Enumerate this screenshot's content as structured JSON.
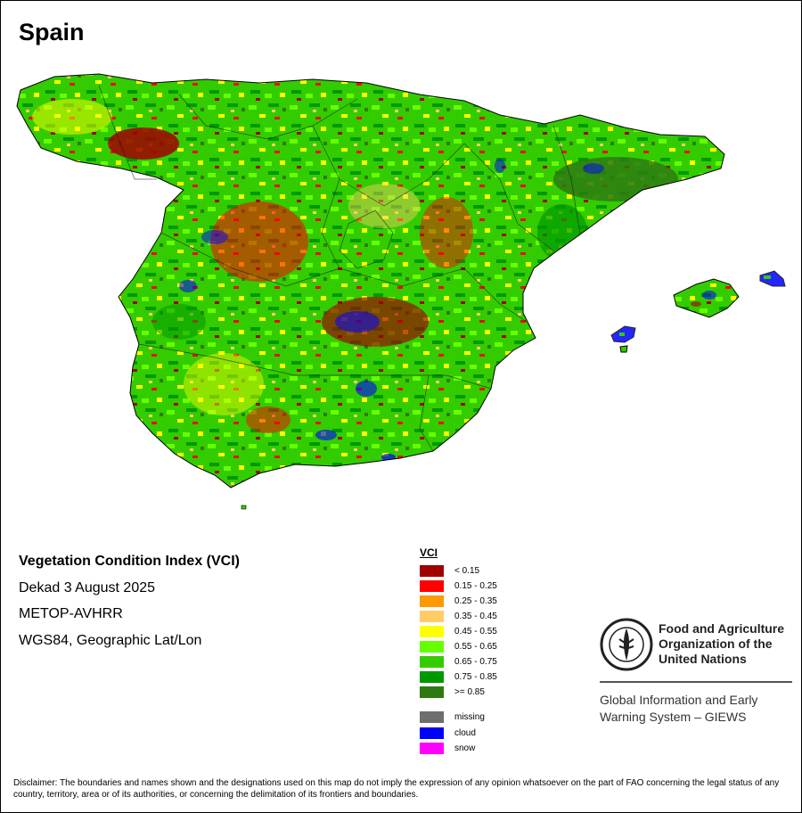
{
  "map": {
    "title": "Spain",
    "info": {
      "product": "Vegetation Condition Index (VCI)",
      "date": "Dekad 3 August 2025",
      "sensor": "METOP-AVHRR",
      "projection": "WGS84, Geographic Lat/Lon"
    },
    "legend": {
      "title": "VCI",
      "classes": [
        {
          "label": "< 0.15",
          "color": "#a00000"
        },
        {
          "label": "0.15 - 0.25",
          "color": "#ff0000"
        },
        {
          "label": "0.25 - 0.35",
          "color": "#ff9900"
        },
        {
          "label": "0.35 - 0.45",
          "color": "#ffcc66"
        },
        {
          "label": "0.45 - 0.55",
          "color": "#ffff00"
        },
        {
          "label": "0.55 - 0.65",
          "color": "#66ff00"
        },
        {
          "label": "0.65 - 0.75",
          "color": "#33cc00"
        },
        {
          "label": "0.75 - 0.85",
          "color": "#009900"
        },
        {
          "label": ">= 0.85",
          "color": "#2e7a12"
        }
      ],
      "special": [
        {
          "label": "missing",
          "color": "#6e6e6e"
        },
        {
          "label": "cloud",
          "color": "#0000ff"
        },
        {
          "label": "snow",
          "color": "#ff00ff"
        }
      ]
    },
    "fao_name": "Food and Agriculture Organization of the United Nations",
    "giews_name": "Global Information and Early Warning System – GIEWS",
    "disclaimer": "Disclaimer: The boundaries and names shown and the designations used on this map do not imply the expression of any opinion whatsoever on the part of FAO concerning the legal status of any country, territory, area or of its authorities, or concerning the delimitation of its frontiers and boundaries."
  }
}
